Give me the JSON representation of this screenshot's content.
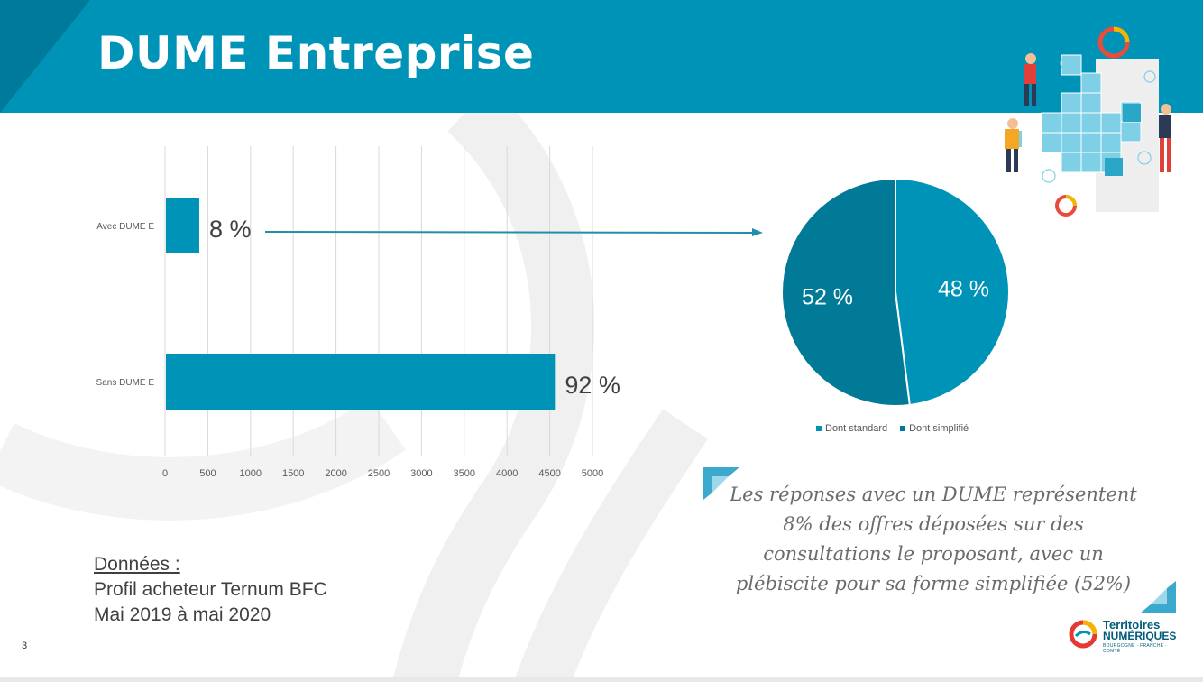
{
  "slide": {
    "title": "DUME Entreprise",
    "number": "3"
  },
  "colors": {
    "banner": "#0093b8",
    "bar": "#0093b8",
    "pie_standard": "#0093b8",
    "pie_simplifie": "#007a96",
    "arrow": "#1f8fad"
  },
  "chart_data": [
    {
      "type": "bar",
      "orientation": "horizontal",
      "categories": [
        "Avec DUME E",
        "Sans DUME E"
      ],
      "values": [
        390,
        4550
      ],
      "data_labels": [
        "8 %",
        "92 %"
      ],
      "xlim": [
        0,
        5000
      ],
      "xticks": [
        "0",
        "500",
        "1000",
        "1500",
        "2000",
        "2500",
        "3000",
        "3500",
        "4000",
        "4500",
        "5000"
      ],
      "grid": "vertical",
      "title": ""
    },
    {
      "type": "pie",
      "categories": [
        "Dont standard",
        "Dont simplifié"
      ],
      "values": [
        48,
        52
      ],
      "data_labels": [
        "48 %",
        "52 %"
      ],
      "legend": "bottom",
      "title": ""
    }
  ],
  "source": {
    "heading": "Données :",
    "line1": "Profil acheteur Ternum BFC",
    "line2": "Mai 2019 à mai 2020"
  },
  "note": {
    "line1": "Les réponses avec un DUME représentent",
    "line2": "8% des offres déposées sur des",
    "line3": "consultations le proposant, avec un",
    "line4": "plébiscite pour sa forme simplifiée (52%)"
  },
  "logo": {
    "line1": "Territoires",
    "line2": "NUMÉRIQUES",
    "line3": "BOURGOGNE · FRANCHE · COMTÉ"
  },
  "icons": [
    "teamwork-cubes-illustration",
    "territoires-numeriques-logo-icon",
    "arrow-right-icon",
    "quote-corner-icon"
  ]
}
